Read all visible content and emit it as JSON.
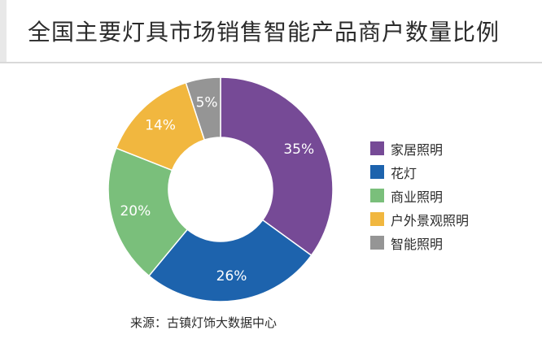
{
  "chart_data": {
    "type": "pie",
    "title": "全国主要灯具市场销售智能产品商户数量比例",
    "source": "来源：古镇灯饰大数据中心",
    "legend_position": "right",
    "slices": [
      {
        "label": "家居照明",
        "value": 35,
        "display": "35%",
        "color": "#764a96"
      },
      {
        "label": "花灯",
        "value": 26,
        "display": "26%",
        "color": "#1d63ad"
      },
      {
        "label": "商业照明",
        "value": 20,
        "display": "20%",
        "color": "#7abf7b"
      },
      {
        "label": "户外景观照明",
        "value": 14,
        "display": "14%",
        "color": "#f1b73f"
      },
      {
        "label": "智能照明",
        "value": 5,
        "display": "5%",
        "color": "#959595"
      }
    ]
  }
}
